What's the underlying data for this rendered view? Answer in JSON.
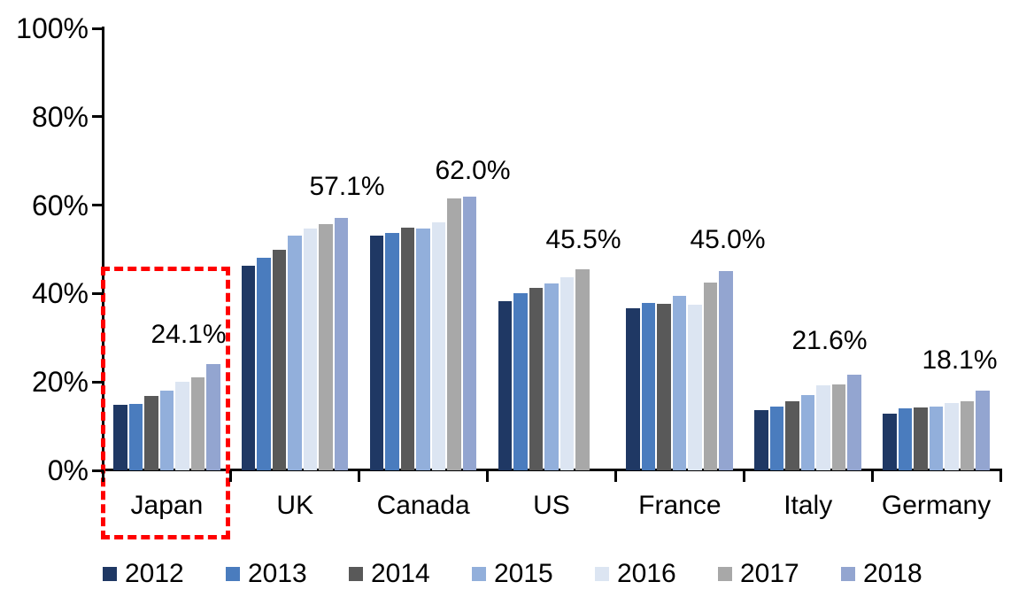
{
  "chart_data": {
    "type": "bar",
    "title": "",
    "legend_position": "bottom",
    "grid": false,
    "y_axis": {
      "ticks": [
        "0%",
        "20%",
        "40%",
        "60%",
        "80%",
        "100%"
      ],
      "min": 0,
      "max": 100,
      "unit": "%"
    },
    "categories": [
      "Japan",
      "UK",
      "Canada",
      "US",
      "France",
      "Italy",
      "Germany"
    ],
    "legend": [
      {
        "year": "2012",
        "color": "#1F3864"
      },
      {
        "year": "2013",
        "color": "#4A7CBE"
      },
      {
        "year": "2014",
        "color": "#595959"
      },
      {
        "year": "2015",
        "color": "#92AFDB"
      },
      {
        "year": "2016",
        "color": "#DCE5F2"
      },
      {
        "year": "2017",
        "color": "#A8A8A8"
      },
      {
        "year": "2018",
        "color": "#93A5D0"
      }
    ],
    "groups": [
      {
        "name": "Japan",
        "values": [
          14.9,
          15.1,
          16.8,
          18.0,
          20.1,
          21.1,
          24.1
        ],
        "label": "24.1%",
        "highlighted": true
      },
      {
        "name": "UK",
        "values": [
          46.3,
          48.0,
          50.0,
          53.2,
          54.7,
          55.7,
          57.1
        ],
        "label": "57.1%",
        "highlighted": false
      },
      {
        "name": "Canada",
        "values": [
          53.1,
          53.7,
          55.0,
          54.7,
          56.1,
          61.6,
          62.0
        ],
        "label": "62.0%",
        "highlighted": false
      },
      {
        "name": "US",
        "values": [
          38.2,
          40.0,
          41.2,
          42.3,
          43.7,
          45.5,
          null
        ],
        "label": "45.5%",
        "highlighted": false
      },
      {
        "name": "France",
        "values": [
          36.6,
          37.8,
          37.7,
          39.4,
          37.4,
          42.4,
          45.0
        ],
        "label": "45.0%",
        "highlighted": false
      },
      {
        "name": "Italy",
        "values": [
          13.6,
          14.4,
          15.6,
          17.0,
          19.2,
          19.4,
          21.6
        ],
        "label": "21.6%",
        "highlighted": false
      },
      {
        "name": "Germany",
        "values": [
          12.8,
          14.0,
          14.3,
          14.5,
          15.3,
          15.7,
          18.1
        ],
        "label": "18.1%",
        "highlighted": false
      }
    ],
    "annotation": {
      "type": "dashed-box",
      "target": "Japan",
      "color": "#FF0000"
    }
  }
}
